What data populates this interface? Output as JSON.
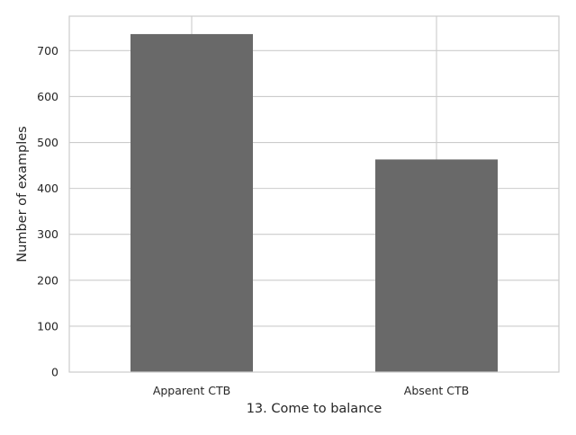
{
  "chart_data": {
    "type": "bar",
    "title": "",
    "xlabel": "13. Come to balance",
    "ylabel": "Number of examples",
    "categories": [
      "Apparent CTB",
      "Absent CTB"
    ],
    "values": [
      736,
      463
    ],
    "ylim": [
      0,
      775
    ],
    "yticks": [
      0,
      100,
      200,
      300,
      400,
      500,
      600,
      700
    ],
    "grid": true,
    "bar_color": "#696969",
    "grid_color": "#cccccc",
    "axes_edge_color": "#cccccc",
    "background": "#ffffff"
  }
}
